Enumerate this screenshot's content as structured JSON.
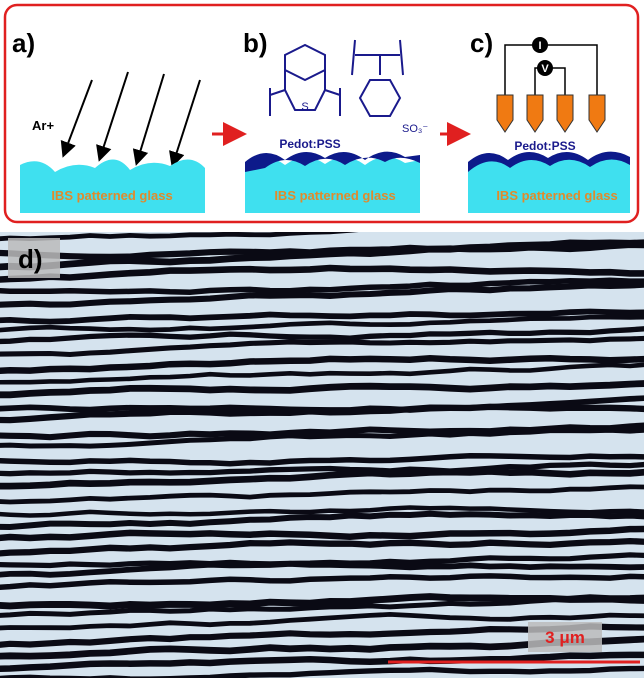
{
  "panels": [
    {
      "label": "a)",
      "beam": "Ar+",
      "substrate": "IBS patterned glass"
    },
    {
      "label": "b)",
      "thiophene_atom": "S",
      "sulfonate": "SO₃⁻",
      "film": "Pedot:PSS",
      "substrate": "IBS patterned glass"
    },
    {
      "label": "c)",
      "current": "I",
      "voltage": "V",
      "film": "Pedot:PSS",
      "substrate": "IBS patterned glass"
    },
    {
      "label": "d)",
      "scale_bar": "3 μm"
    }
  ]
}
